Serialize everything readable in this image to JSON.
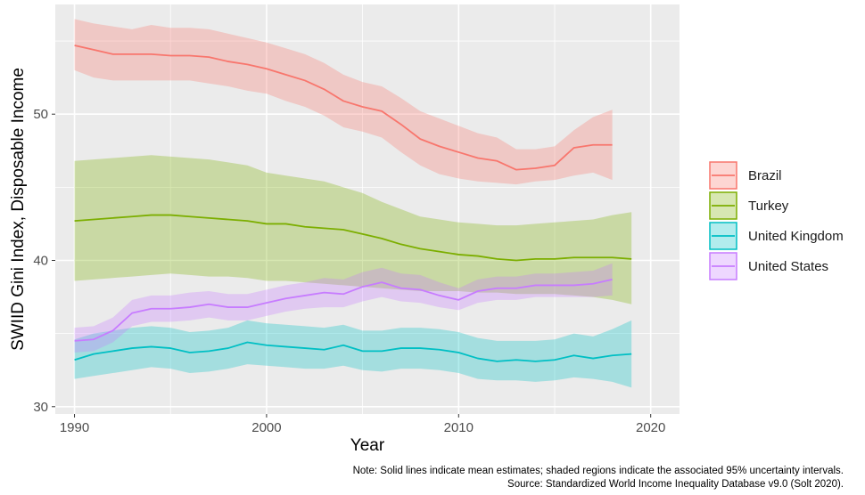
{
  "chart_data": {
    "type": "line",
    "xlabel": "Year",
    "ylabel": "SWIID Gini Index, Disposable Income",
    "xlim": [
      1989,
      2021.5
    ],
    "ylim": [
      29.5,
      57.5
    ],
    "xticks": [
      1990,
      2000,
      2010,
      2020
    ],
    "yticks": [
      30,
      40,
      50
    ],
    "grid": true,
    "legend_position": "right",
    "band_meaning": "95% uncertainty interval",
    "series": [
      {
        "name": "Brazil",
        "color": "#F8766D",
        "x": [
          1990,
          1991,
          1992,
          1993,
          1994,
          1995,
          1996,
          1997,
          1998,
          1999,
          2000,
          2001,
          2002,
          2003,
          2004,
          2005,
          2006,
          2007,
          2008,
          2009,
          2010,
          2011,
          2012,
          2013,
          2014,
          2015,
          2016,
          2017,
          2018
        ],
        "y": [
          54.7,
          54.4,
          54.1,
          54.1,
          54.1,
          54.0,
          54.0,
          53.9,
          53.6,
          53.4,
          53.1,
          52.7,
          52.3,
          51.7,
          50.9,
          50.5,
          50.2,
          49.3,
          48.3,
          47.8,
          47.4,
          47.0,
          46.8,
          46.2,
          46.3,
          46.5,
          47.7,
          47.9,
          47.9
        ],
        "lower": [
          53.0,
          52.5,
          52.3,
          52.3,
          52.3,
          52.3,
          52.3,
          52.1,
          51.9,
          51.6,
          51.4,
          50.9,
          50.5,
          49.9,
          49.1,
          48.8,
          48.4,
          47.4,
          46.5,
          45.9,
          45.6,
          45.4,
          45.3,
          45.2,
          45.4,
          45.5,
          45.8,
          46.0,
          45.5
        ],
        "upper": [
          56.5,
          56.2,
          56.0,
          55.8,
          56.1,
          55.9,
          55.9,
          55.8,
          55.5,
          55.2,
          54.9,
          54.5,
          54.1,
          53.5,
          52.7,
          52.2,
          51.9,
          51.1,
          50.2,
          49.7,
          49.2,
          48.7,
          48.4,
          47.6,
          47.6,
          47.8,
          48.9,
          49.8,
          50.3
        ]
      },
      {
        "name": "Turkey",
        "color": "#7CAE00",
        "x": [
          1990,
          1991,
          1992,
          1993,
          1994,
          1995,
          1996,
          1997,
          1998,
          1999,
          2000,
          2001,
          2002,
          2003,
          2004,
          2005,
          2006,
          2007,
          2008,
          2009,
          2010,
          2011,
          2012,
          2013,
          2014,
          2015,
          2016,
          2017,
          2018,
          2019
        ],
        "y": [
          42.7,
          42.8,
          42.9,
          43.0,
          43.1,
          43.1,
          43.0,
          42.9,
          42.8,
          42.7,
          42.5,
          42.5,
          42.3,
          42.2,
          42.1,
          41.8,
          41.5,
          41.1,
          40.8,
          40.6,
          40.4,
          40.3,
          40.1,
          40.0,
          40.1,
          40.1,
          40.2,
          40.2,
          40.2,
          40.1
        ],
        "lower": [
          38.6,
          38.7,
          38.8,
          38.9,
          39.0,
          39.1,
          39.0,
          38.9,
          38.9,
          38.8,
          38.6,
          38.6,
          38.5,
          38.4,
          38.3,
          38.2,
          38.1,
          38.0,
          37.9,
          37.9,
          37.9,
          37.8,
          37.8,
          37.7,
          37.7,
          37.7,
          37.6,
          37.5,
          37.3,
          37.0
        ],
        "upper": [
          46.8,
          46.9,
          47.0,
          47.1,
          47.2,
          47.1,
          47.0,
          46.9,
          46.7,
          46.5,
          46.0,
          45.8,
          45.6,
          45.4,
          45.0,
          44.6,
          44.0,
          43.5,
          43.0,
          42.8,
          42.6,
          42.5,
          42.4,
          42.4,
          42.5,
          42.6,
          42.7,
          42.8,
          43.1,
          43.3
        ]
      },
      {
        "name": "United Kingdom",
        "color": "#00BFC4",
        "x": [
          1990,
          1991,
          1992,
          1993,
          1994,
          1995,
          1996,
          1997,
          1998,
          1999,
          2000,
          2001,
          2002,
          2003,
          2004,
          2005,
          2006,
          2007,
          2008,
          2009,
          2010,
          2011,
          2012,
          2013,
          2014,
          2015,
          2016,
          2017,
          2018,
          2019
        ],
        "y": [
          33.2,
          33.6,
          33.8,
          34.0,
          34.1,
          34.0,
          33.7,
          33.8,
          34.0,
          34.4,
          34.2,
          34.1,
          34.0,
          33.9,
          34.2,
          33.8,
          33.8,
          34.0,
          34.0,
          33.9,
          33.7,
          33.3,
          33.1,
          33.2,
          33.1,
          33.2,
          33.5,
          33.3,
          33.5,
          33.6
        ],
        "lower": [
          31.9,
          32.1,
          32.3,
          32.5,
          32.7,
          32.6,
          32.3,
          32.4,
          32.6,
          32.9,
          32.8,
          32.7,
          32.6,
          32.6,
          32.8,
          32.5,
          32.4,
          32.6,
          32.6,
          32.5,
          32.3,
          31.9,
          31.8,
          31.8,
          31.7,
          31.8,
          32.0,
          31.9,
          31.7,
          31.3
        ],
        "upper": [
          34.6,
          35.0,
          35.2,
          35.4,
          35.5,
          35.4,
          35.1,
          35.2,
          35.4,
          35.9,
          35.7,
          35.6,
          35.5,
          35.4,
          35.6,
          35.2,
          35.2,
          35.4,
          35.4,
          35.3,
          35.1,
          34.7,
          34.5,
          34.5,
          34.5,
          34.6,
          35.0,
          34.8,
          35.3,
          35.9
        ]
      },
      {
        "name": "United States",
        "color": "#C77CFF",
        "x": [
          1990,
          1991,
          1992,
          1993,
          1994,
          1995,
          1996,
          1997,
          1998,
          1999,
          2000,
          2001,
          2002,
          2003,
          2004,
          2005,
          2006,
          2007,
          2008,
          2009,
          2010,
          2011,
          2012,
          2013,
          2014,
          2015,
          2016,
          2017,
          2018
        ],
        "y": [
          34.5,
          34.6,
          35.2,
          36.4,
          36.7,
          36.7,
          36.8,
          37.0,
          36.8,
          36.8,
          37.1,
          37.4,
          37.6,
          37.8,
          37.7,
          38.2,
          38.5,
          38.1,
          38.0,
          37.6,
          37.3,
          37.9,
          38.1,
          38.1,
          38.3,
          38.3,
          38.3,
          38.4,
          38.7
        ],
        "lower": [
          33.7,
          33.8,
          34.4,
          35.5,
          35.8,
          35.8,
          35.9,
          36.1,
          35.9,
          35.9,
          36.2,
          36.5,
          36.7,
          36.8,
          36.8,
          37.2,
          37.5,
          37.2,
          37.1,
          36.8,
          36.6,
          37.1,
          37.3,
          37.3,
          37.5,
          37.5,
          37.5,
          37.5,
          37.6
        ],
        "upper": [
          35.4,
          35.5,
          36.1,
          37.3,
          37.6,
          37.6,
          37.8,
          37.9,
          37.7,
          37.7,
          38.0,
          38.3,
          38.5,
          38.8,
          38.7,
          39.2,
          39.5,
          39.1,
          39.0,
          38.5,
          38.1,
          38.7,
          38.9,
          38.9,
          39.1,
          39.1,
          39.2,
          39.3,
          39.8
        ]
      }
    ]
  },
  "notes": {
    "line1": "Note: Solid lines indicate mean estimates; shaded regions indicate the associated 95% uncertainty intervals.",
    "line2": "Source: Standardized World Income Inequality Database v9.0 (Solt 2020)."
  }
}
